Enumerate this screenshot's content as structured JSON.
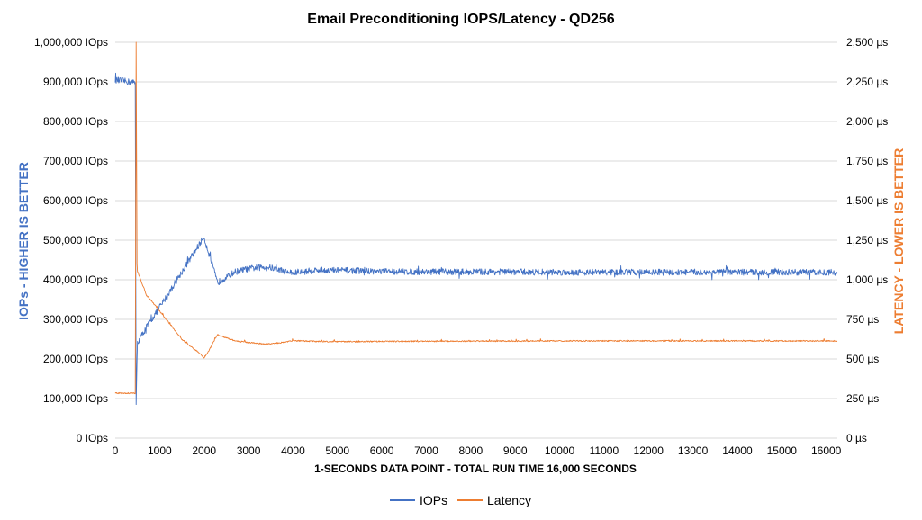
{
  "chart_data": {
    "type": "line",
    "title": "Email Preconditioning IOPS/Latency - QD256",
    "xlabel": "1-SECONDS DATA POINT - TOTAL RUN TIME 16,000 SECONDS",
    "ylabel_left": "IOPs - HIGHER IS BETTER",
    "ylabel_right": "LATENCY - LOWER IS BETTER",
    "xlim": [
      0,
      16250
    ],
    "ylim_left": [
      0,
      1000000
    ],
    "ylim_right": [
      0,
      2500
    ],
    "x_ticks": [
      "0",
      "1000",
      "2000",
      "3000",
      "4000",
      "5000",
      "6000",
      "7000",
      "8000",
      "9000",
      "10000",
      "11000",
      "12000",
      "13000",
      "14000",
      "15000",
      "16000"
    ],
    "y_left_ticks": [
      "0 IOps",
      "100,000 IOps",
      "200,000 IOps",
      "300,000 IOps",
      "400,000 IOps",
      "500,000 IOps",
      "600,000 IOps",
      "700,000 IOps",
      "800,000 IOps",
      "900,000 IOps",
      "1,000,000 IOps"
    ],
    "y_right_ticks": [
      "0 µs",
      "250 µs",
      "500 µs",
      "750 µs",
      "1,000 µs",
      "1,250 µs",
      "1,500 µs",
      "1,750 µs",
      "2,000 µs",
      "2,250 µs",
      "2,500 µs"
    ],
    "grid": true,
    "legend_position": "bottom",
    "series": [
      {
        "name": "IOPs",
        "axis": "left",
        "color": "#4472C4",
        "x": [
          0,
          200,
          450,
          470,
          490,
          500,
          700,
          1000,
          1500,
          1950,
          2000,
          2100,
          2300,
          2400,
          2700,
          3000,
          3400,
          3700,
          4000,
          4500,
          5000,
          6000,
          7000,
          8000,
          9000,
          10000,
          11000,
          12000,
          13000,
          14000,
          15000,
          16000,
          16250
        ],
        "y": [
          905000,
          902000,
          898000,
          85000,
          200000,
          240000,
          280000,
          330000,
          420000,
          500000,
          505000,
          470000,
          392000,
          400000,
          420000,
          428000,
          433000,
          425000,
          417000,
          424000,
          424000,
          421000,
          420000,
          420000,
          420000,
          419000,
          419000,
          419000,
          419000,
          419000,
          419000,
          419000,
          419000
        ]
      },
      {
        "name": "Latency",
        "axis": "right",
        "color": "#ED7D31",
        "x": [
          0,
          200,
          450,
          470,
          490,
          500,
          700,
          1000,
          1500,
          1950,
          2000,
          2100,
          2300,
          2400,
          2700,
          3000,
          3400,
          3700,
          4000,
          4500,
          5000,
          6000,
          7000,
          8000,
          9000,
          10000,
          11000,
          12000,
          13000,
          14000,
          15000,
          16000,
          16250
        ],
        "y": [
          280,
          280,
          280,
          2500,
          1100,
          1050,
          900,
          800,
          620,
          520,
          505,
          545,
          650,
          640,
          610,
          600,
          590,
          598,
          612,
          607,
          605,
          607,
          608,
          609,
          609,
          610,
          610,
          610,
          610,
          610,
          610,
          610,
          610
        ]
      }
    ]
  }
}
